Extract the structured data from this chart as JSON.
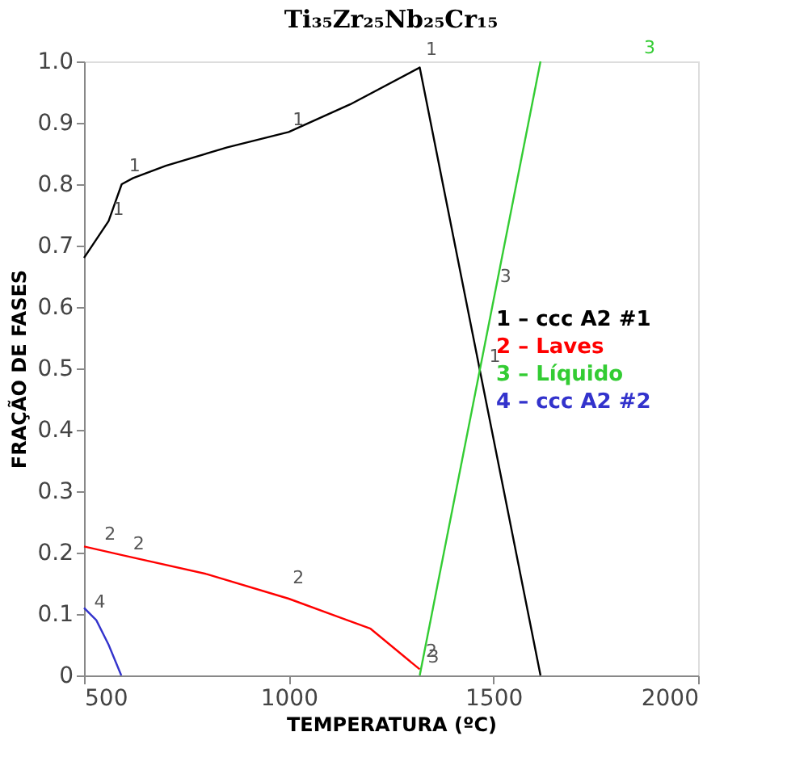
{
  "chart_data": {
    "type": "line",
    "title": "Ti₃₅Zr₂₅Nb₂₅Cr₁₅",
    "xlabel": "TEMPERATURA (ºC)",
    "ylabel": "FRAÇÃO DE FASES",
    "xlim": [
      500,
      2000
    ],
    "ylim": [
      0,
      1
    ],
    "xticks": [
      500,
      1000,
      1500,
      2000
    ],
    "yticks": [
      0,
      0.1,
      0.2,
      0.3,
      0.4,
      0.5,
      0.6,
      0.7,
      0.8,
      0.9,
      {
        "value": 1,
        "label": "1.0"
      }
    ],
    "grid": false,
    "legend": "right",
    "marker": "none",
    "line_style": "solid",
    "series": [
      {
        "name": "1 – ccc A2 #1",
        "color": "#000000",
        "x": [
          500,
          560,
          592,
          620,
          700,
          850,
          1000,
          1150,
          1320,
          1615
        ],
        "values": [
          0.68,
          0.74,
          0.8,
          0.81,
          0.83,
          0.86,
          0.885,
          0.93,
          0.99,
          0
        ]
      },
      {
        "name": "2 – Laves",
        "color": "#ff0000",
        "x": [
          500,
          600,
          800,
          1000,
          1200,
          1320
        ],
        "values": [
          0.21,
          0.195,
          0.165,
          0.125,
          0.076,
          0.01
        ]
      },
      {
        "name": "3 – Líquido",
        "color": "#33cc33",
        "x": [
          1320,
          1615
        ],
        "values": [
          0,
          1
        ]
      },
      {
        "name": "4 – ccc A2 #2",
        "color": "#3333cc",
        "x": [
          500,
          530,
          560,
          591
        ],
        "values": [
          0.11,
          0.09,
          0.05,
          0
        ]
      }
    ],
    "annotations": [
      {
        "text": "1",
        "x": 560,
        "y": 0.74
      },
      {
        "text": "1",
        "x": 600,
        "y": 0.81
      },
      {
        "text": "1",
        "x": 1000,
        "y": 0.885
      },
      {
        "text": "1",
        "x": 1325,
        "y": 1.0
      },
      {
        "text": "1",
        "x": 1480,
        "y": 0.5
      },
      {
        "text": "2",
        "x": 540,
        "y": 0.21
      },
      {
        "text": "2",
        "x": 610,
        "y": 0.195
      },
      {
        "text": "2",
        "x": 1000,
        "y": 0.14
      },
      {
        "text": "2",
        "x": 1325,
        "y": 0.02
      },
      {
        "text": "3",
        "x": 1330,
        "y": 0.01
      },
      {
        "text": "3",
        "x": 1506,
        "y": 0.63
      },
      {
        "text": "4",
        "x": 515,
        "y": 0.1
      },
      "3"
    ]
  }
}
